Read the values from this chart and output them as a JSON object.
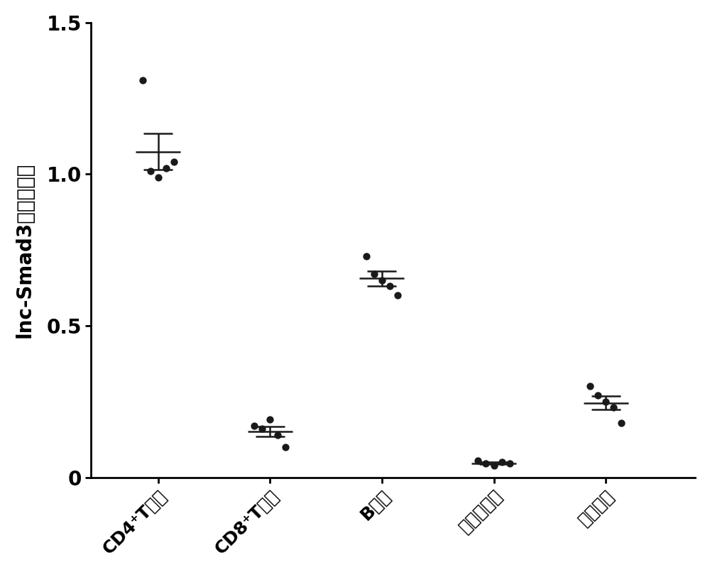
{
  "groups": [
    "CD4⁺T细胞",
    "CD8⁺T细胞",
    "B细胞",
    "树突状细胞",
    "巨噬细胞"
  ],
  "ylabel": "lnc-Smad3相对表达量",
  "ylim": [
    0,
    1.5
  ],
  "yticks": [
    0,
    0.5,
    1.0,
    1.5
  ],
  "dot_data": {
    "CD4": [
      1.31,
      1.01,
      0.99,
      1.02,
      1.04
    ],
    "CD8": [
      0.17,
      0.16,
      0.19,
      0.14,
      0.1
    ],
    "B": [
      0.73,
      0.67,
      0.65,
      0.63,
      0.6
    ],
    "DC": [
      0.055,
      0.045,
      0.04,
      0.05,
      0.045
    ],
    "Mac": [
      0.3,
      0.27,
      0.25,
      0.23,
      0.18
    ]
  },
  "mean": [
    1.074,
    0.152,
    0.656,
    0.047,
    0.246
  ],
  "sem": [
    0.06,
    0.016,
    0.024,
    0.004,
    0.022
  ],
  "x_positions": [
    1,
    2,
    3,
    4,
    5
  ],
  "dot_color": "#1a1a1a",
  "line_color": "#1a1a1a",
  "bg_color": "#ffffff",
  "dot_size": 55,
  "line_width": 1.8,
  "capsize": 0.13,
  "mean_bar_half": 0.2,
  "tick_fontsize": 20,
  "label_fontsize": 20,
  "xtick_fontsize": 18
}
